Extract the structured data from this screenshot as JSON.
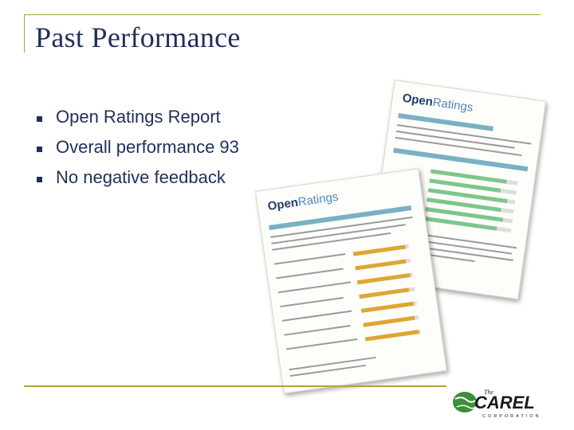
{
  "slide": {
    "title": "Past Performance",
    "bullets": [
      "Open Ratings Report",
      "Overall performance 93",
      "No negative feedback"
    ]
  },
  "documents": {
    "logo_open": "Open",
    "logo_ratings": "Ratings"
  },
  "brand": {
    "name": "CAREL",
    "the": "The",
    "tagline": "CORPORATION"
  },
  "colors": {
    "title_text": "#1f2f5a",
    "accent_rule": "#b3a234",
    "logo_green": "#3c8f3c"
  }
}
